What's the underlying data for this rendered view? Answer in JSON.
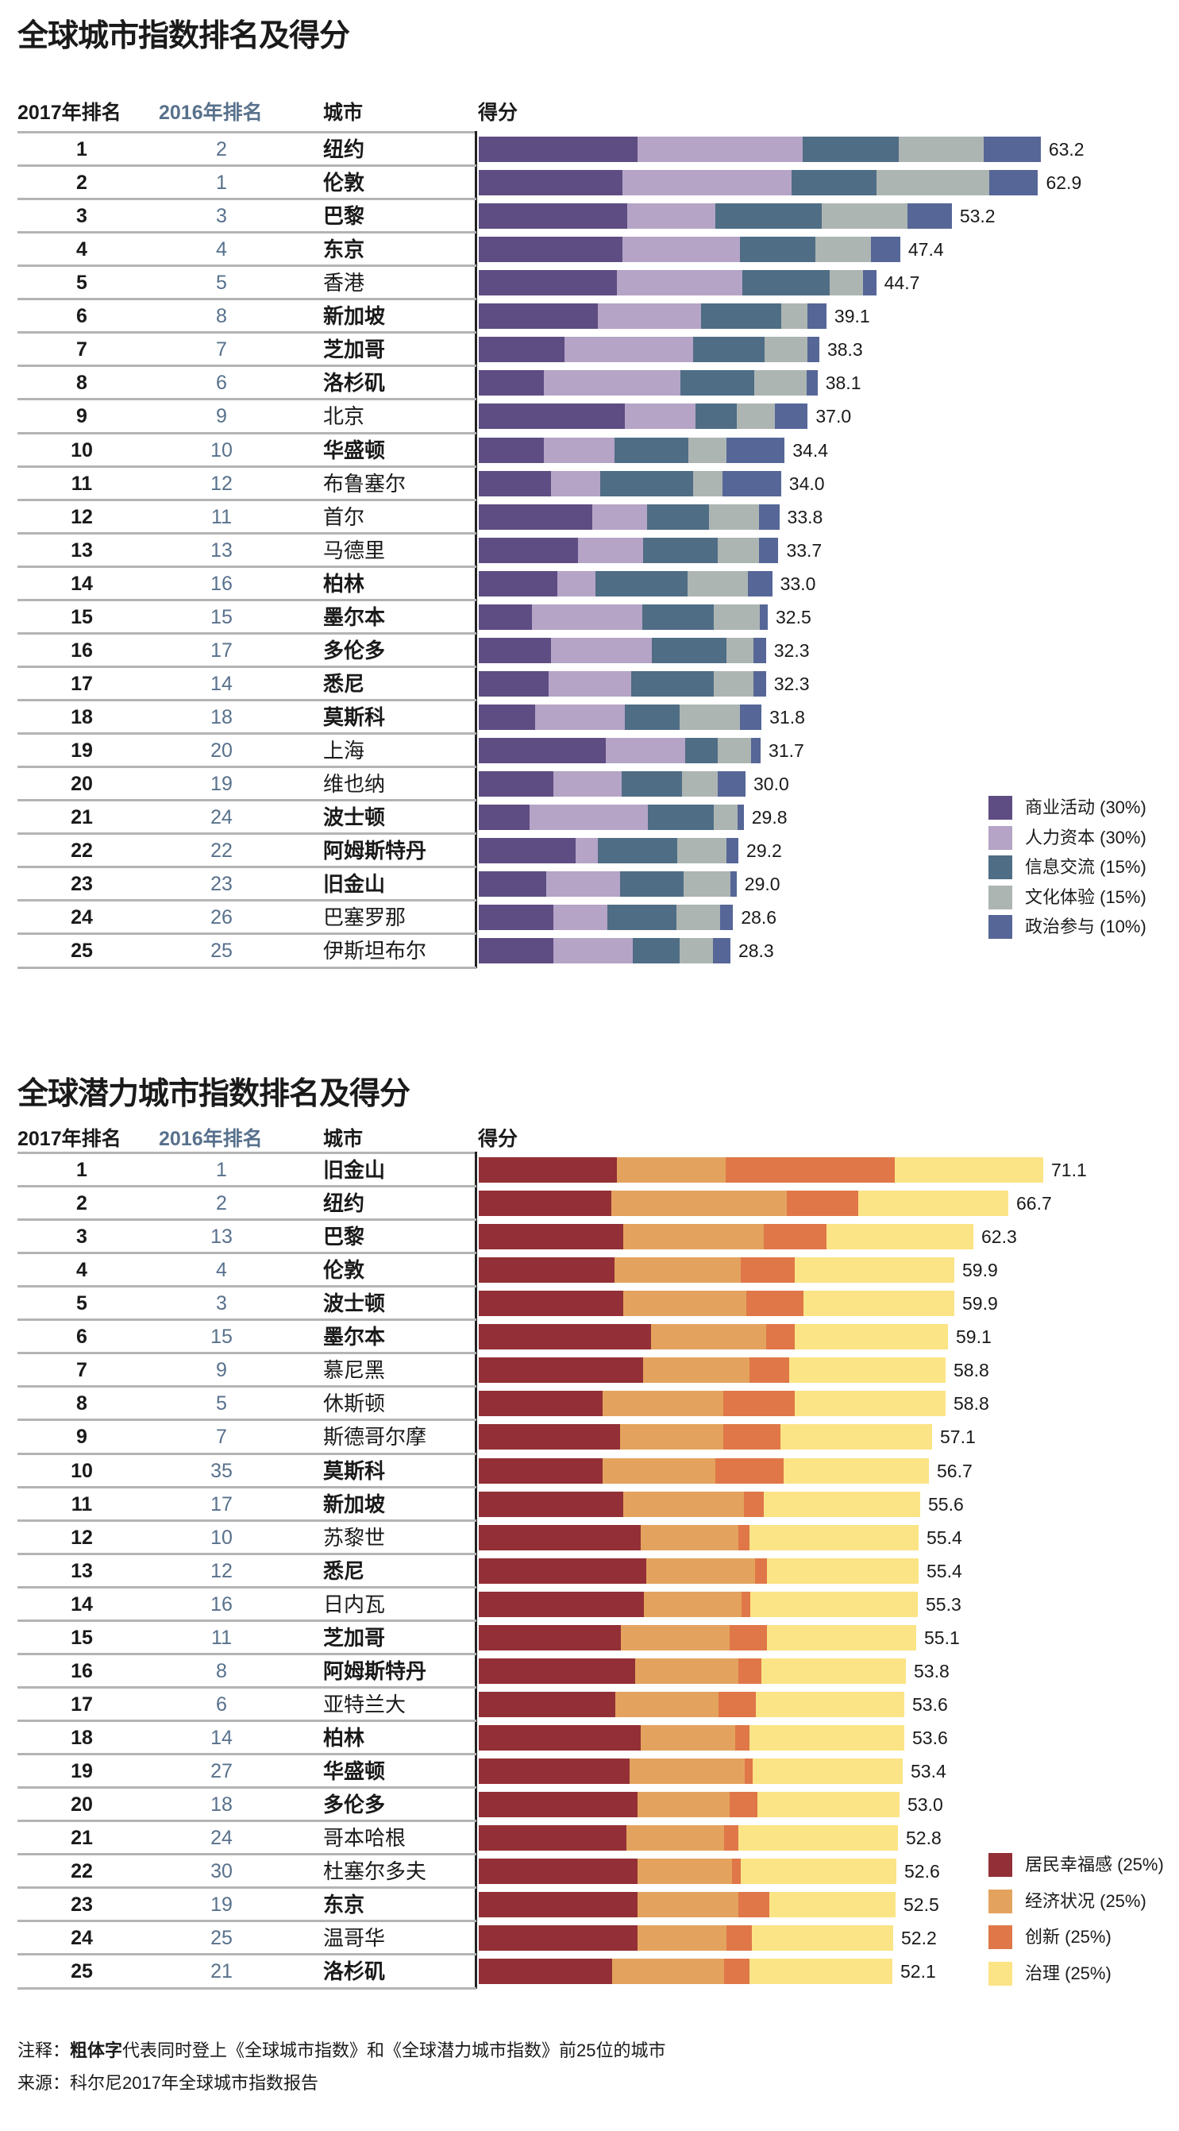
{
  "footer": {
    "note_label": "注释：",
    "note_bold": "粗体字",
    "note_rest": "代表同时登上《全球城市指数》和《全球潜力城市指数》前25位的城市",
    "source": "来源：科尔尼2017年全球城市指数报告"
  },
  "chart_data": [
    {
      "type": "bar",
      "orientation": "horizontal",
      "stacked": true,
      "title": "全球城市指数排名及得分",
      "headers": {
        "rank2017": "2017年排名",
        "rank2016": "2016年排名",
        "city": "城市",
        "score": "得分"
      },
      "rank2016_color": "#58718c",
      "legend_position": "bottom-right",
      "categories": [
        "纽约",
        "伦敦",
        "巴黎",
        "东京",
        "香港",
        "新加坡",
        "芝加哥",
        "洛杉矶",
        "北京",
        "华盛顿",
        "布鲁塞尔",
        "首尔",
        "马德里",
        "柏林",
        "墨尔本",
        "多伦多",
        "悉尼",
        "莫斯科",
        "上海",
        "维也纳",
        "波士顿",
        "阿姆斯特丹",
        "旧金山",
        "巴塞罗那",
        "伊斯坦布尔"
      ],
      "rank2017": [
        1,
        2,
        3,
        4,
        5,
        6,
        7,
        8,
        9,
        10,
        11,
        12,
        13,
        14,
        15,
        16,
        17,
        18,
        19,
        20,
        21,
        22,
        23,
        24,
        25
      ],
      "rank2016": [
        2,
        1,
        3,
        4,
        5,
        8,
        7,
        6,
        9,
        10,
        12,
        11,
        13,
        16,
        15,
        17,
        14,
        18,
        20,
        19,
        24,
        22,
        23,
        26,
        25
      ],
      "bold": [
        true,
        true,
        true,
        true,
        false,
        true,
        true,
        true,
        false,
        true,
        false,
        false,
        false,
        true,
        true,
        true,
        true,
        true,
        false,
        false,
        true,
        true,
        true,
        false,
        false
      ],
      "totals": [
        "63.2",
        "62.9",
        "53.2",
        "47.4",
        "44.7",
        "39.1",
        "38.3",
        "38.1",
        "37.0",
        "34.4",
        "34.0",
        "33.8",
        "33.7",
        "33.0",
        "32.5",
        "32.3",
        "32.3",
        "31.8",
        "31.7",
        "30.0",
        "29.8",
        "29.2",
        "29.0",
        "28.6",
        "28.3"
      ],
      "series": [
        {
          "name": "商业活动 (30%)",
          "color": "#5e4d82",
          "values": [
            17.9,
            16.2,
            16.7,
            16.2,
            15.5,
            13.4,
            9.6,
            7.3,
            16.4,
            7.3,
            8.1,
            12.8,
            11.2,
            8.8,
            6.0,
            8.1,
            7.9,
            6.3,
            14.3,
            8.4,
            5.7,
            10.9,
            7.6,
            8.4,
            8.4
          ]
        },
        {
          "name": "人力资本 (30%)",
          "color": "#b5a4c6",
          "values": [
            18.5,
            19.0,
            9.9,
            13.2,
            14.1,
            11.6,
            14.5,
            15.4,
            8.0,
            8.0,
            5.6,
            6.1,
            7.3,
            4.3,
            12.4,
            11.4,
            9.2,
            10.1,
            8.9,
            7.7,
            13.3,
            2.5,
            8.3,
            6.1,
            8.9
          ]
        },
        {
          "name": "信息交流 (15%)",
          "color": "#4f6d85",
          "values": [
            10.8,
            9.5,
            12.0,
            8.5,
            9.9,
            9.0,
            8.0,
            8.3,
            4.6,
            8.3,
            10.4,
            7.0,
            8.4,
            10.4,
            8.0,
            8.4,
            9.3,
            6.2,
            3.7,
            6.8,
            7.4,
            8.9,
            7.1,
            7.7,
            5.3
          ]
        },
        {
          "name": "文化体验 (15%)",
          "color": "#adb5b3",
          "values": [
            9.6,
            12.7,
            9.6,
            6.2,
            3.7,
            3.0,
            4.9,
            5.9,
            4.3,
            4.3,
            3.3,
            5.6,
            4.6,
            6.8,
            5.2,
            3.0,
            4.5,
            6.8,
            3.7,
            4.0,
            2.7,
            5.6,
            5.3,
            4.9,
            3.7
          ]
        },
        {
          "name": "政治参与 (10%)",
          "color": "#566697",
          "values": [
            6.4,
            5.5,
            5.0,
            3.3,
            1.5,
            2.1,
            1.3,
            1.2,
            3.7,
            6.5,
            6.6,
            2.3,
            2.2,
            2.7,
            0.9,
            1.4,
            1.4,
            2.4,
            1.1,
            3.1,
            0.7,
            1.3,
            0.7,
            1.5,
            2.0
          ]
        }
      ]
    },
    {
      "type": "bar",
      "orientation": "horizontal",
      "stacked": true,
      "title": "全球潜力城市指数排名及得分",
      "headers": {
        "rank2017": "2017年排名",
        "rank2016": "2016年排名",
        "city": "城市",
        "score": "得分"
      },
      "rank2016_color": "#58718c",
      "legend_position": "bottom-right",
      "categories": [
        "旧金山",
        "纽约",
        "巴黎",
        "伦敦",
        "波士顿",
        "墨尔本",
        "慕尼黑",
        "休斯顿",
        "斯德哥尔摩",
        "莫斯科",
        "新加坡",
        "苏黎世",
        "悉尼",
        "日内瓦",
        "芝加哥",
        "阿姆斯特丹",
        "亚特兰大",
        "柏林",
        "华盛顿",
        "多伦多",
        "哥本哈根",
        "杜塞尔多夫",
        "东京",
        "温哥华",
        "洛杉矶"
      ],
      "rank2017": [
        1,
        2,
        3,
        4,
        5,
        6,
        7,
        8,
        9,
        10,
        11,
        12,
        13,
        14,
        15,
        16,
        17,
        18,
        19,
        20,
        21,
        22,
        23,
        24,
        25
      ],
      "rank2016": [
        1,
        2,
        13,
        4,
        3,
        15,
        9,
        5,
        7,
        35,
        17,
        10,
        12,
        16,
        11,
        8,
        6,
        14,
        27,
        18,
        24,
        30,
        19,
        25,
        21
      ],
      "bold": [
        true,
        true,
        true,
        true,
        true,
        true,
        false,
        false,
        false,
        true,
        true,
        false,
        true,
        false,
        true,
        true,
        false,
        true,
        true,
        true,
        false,
        false,
        true,
        false,
        true
      ],
      "totals": [
        "71.1",
        "66.7",
        "62.3",
        "59.9",
        "59.9",
        "59.1",
        "58.8",
        "58.8",
        "57.1",
        "56.7",
        "55.6",
        "55.4",
        "55.4",
        "55.3",
        "55.1",
        "53.8",
        "53.6",
        "53.6",
        "53.4",
        "53.0",
        "52.8",
        "52.6",
        "52.5",
        "52.2",
        "52.1"
      ],
      "series": [
        {
          "name": "居民幸福感 (25%)",
          "color": "#932f36",
          "values": [
            17.4,
            16.7,
            18.2,
            17.1,
            18.2,
            21.7,
            20.7,
            15.6,
            17.8,
            15.6,
            18.2,
            20.4,
            21.1,
            20.8,
            17.9,
            19.7,
            17.2,
            20.4,
            19.0,
            20.0,
            18.6,
            20.0,
            20.0,
            20.0,
            16.8
          ]
        },
        {
          "name": "经济状况 (25%)",
          "color": "#e3a35e",
          "values": [
            13.7,
            22.1,
            17.7,
            15.9,
            15.5,
            14.5,
            13.4,
            15.2,
            13.0,
            14.2,
            15.2,
            12.3,
            13.7,
            12.3,
            13.7,
            13.0,
            13.0,
            11.9,
            14.5,
            11.6,
            12.3,
            11.9,
            12.7,
            11.2,
            14.1
          ]
        },
        {
          "name": "创新 (25%)",
          "color": "#e07748",
          "values": [
            21.3,
            9.0,
            7.9,
            6.8,
            7.2,
            3.6,
            5.0,
            9.0,
            7.2,
            8.6,
            2.5,
            1.4,
            1.5,
            1.1,
            4.7,
            2.9,
            4.7,
            1.8,
            1.0,
            3.5,
            1.8,
            1.1,
            3.9,
            3.2,
            3.2
          ]
        },
        {
          "name": "治理 (25%)",
          "color": "#fbe485",
          "values": [
            18.7,
            18.9,
            18.5,
            20.1,
            19.0,
            19.3,
            19.7,
            19.0,
            19.1,
            18.3,
            19.7,
            21.3,
            19.1,
            21.1,
            18.8,
            18.2,
            18.7,
            19.5,
            18.9,
            17.9,
            20.1,
            19.6,
            15.9,
            17.8,
            18.0
          ]
        }
      ]
    }
  ]
}
